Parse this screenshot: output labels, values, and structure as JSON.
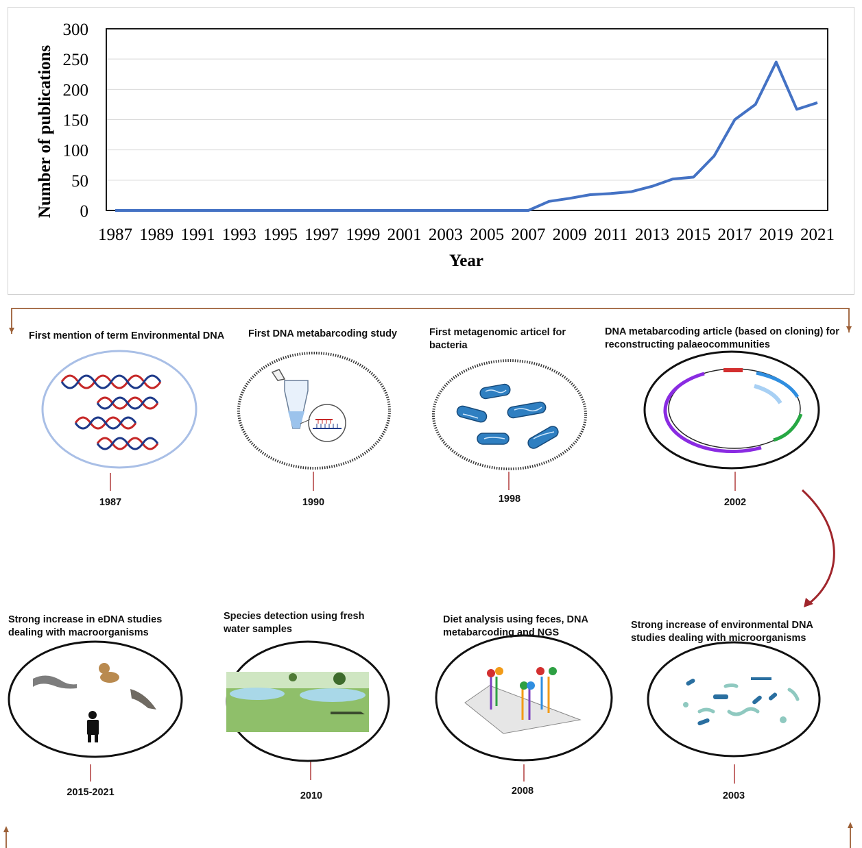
{
  "chart_data": {
    "type": "line",
    "xlabel": "Year",
    "ylabel": "Number of publications",
    "x_tick_labels": [
      "1987",
      "1989",
      "1991",
      "1993",
      "1995",
      "1997",
      "1999",
      "2001",
      "2003",
      "2005",
      "2007",
      "2009",
      "2011",
      "2013",
      "2015",
      "2017",
      "2019",
      "2021"
    ],
    "y_tick_labels": [
      "0",
      "50",
      "100",
      "150",
      "200",
      "250",
      "300"
    ],
    "ylim": [
      0,
      300
    ],
    "xlim": [
      1987,
      2021
    ],
    "grid": "horizontal",
    "series": [
      {
        "color": "#4472C4",
        "x": [
          1987,
          1988,
          1989,
          1990,
          1991,
          1992,
          1993,
          1994,
          1995,
          1996,
          1997,
          1998,
          1999,
          2000,
          2001,
          2002,
          2003,
          2004,
          2005,
          2006,
          2007,
          2008,
          2009,
          2010,
          2011,
          2012,
          2013,
          2014,
          2015,
          2016,
          2017,
          2018,
          2019,
          2020,
          2021
        ],
        "y": [
          0,
          0,
          0,
          0,
          0,
          0,
          0,
          0,
          0,
          0,
          0,
          0,
          0,
          0,
          0,
          0,
          0,
          0,
          0,
          0,
          0,
          15,
          20,
          26,
          28,
          31,
          40,
          52,
          55,
          90,
          150,
          175,
          245,
          167,
          178
        ]
      }
    ]
  },
  "timeline": {
    "panels": [
      {
        "title": "First mention of term Environmental DNA",
        "year": "1987"
      },
      {
        "title": "First DNA metabarcoding study",
        "year": "1990"
      },
      {
        "title": "First metagenomic articel for bacteria",
        "year": "1998"
      },
      {
        "title": "DNA metabarcoding article (based on cloning) for reconstructing palaeocommunities",
        "year": "2002"
      },
      {
        "title": "Strong increase in eDNA studies dealing with macroorganisms",
        "year": "2015-2021"
      },
      {
        "title": "Species detection using fresh water samples",
        "year": "2010"
      },
      {
        "title": "Diet analysis using feces, DNA metabarcoding and NGS",
        "year": "2008"
      },
      {
        "title": "Strong increase of environmental DNA studies dealing with microorganisms",
        "year": "2003"
      }
    ]
  },
  "colors": {
    "line": "#4472C4",
    "frame_arrow": "#9c5f36",
    "curve_arrow": "#a0262c",
    "tick_red": "#b03a3a"
  },
  "icons": {
    "p0": "dna-helix-icon",
    "p1": "pcr-tube-icon",
    "p2": "bacteria-icon",
    "p3": "plasmid-icon",
    "p4": "animals-icon",
    "p5": "freshwater-landscape-icon",
    "p6": "dna-microarray-icon",
    "p7": "microorganisms-icon"
  }
}
